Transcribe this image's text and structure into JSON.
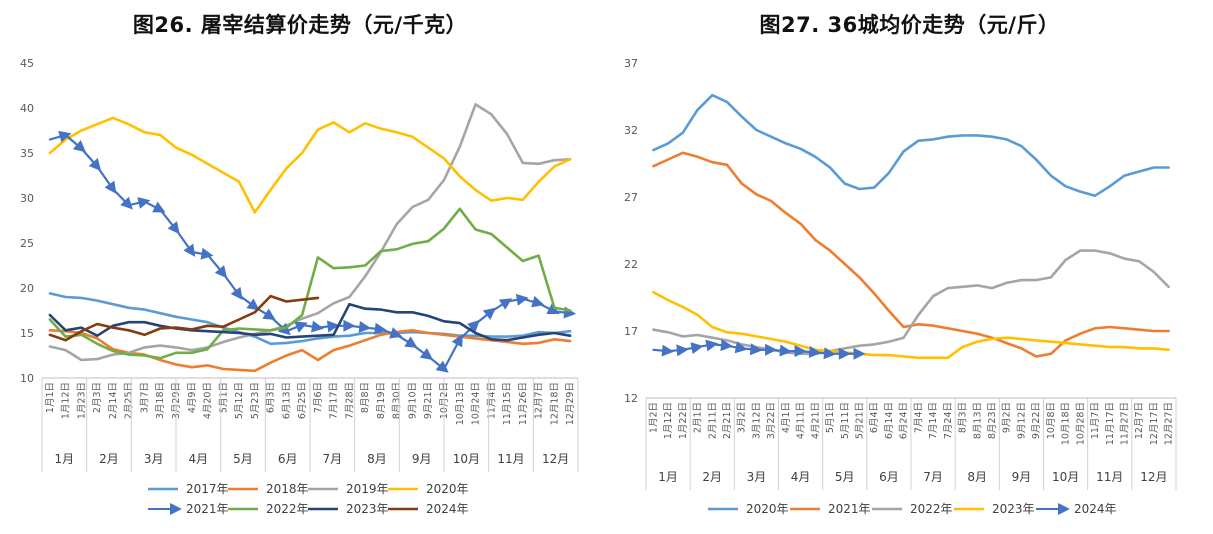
{
  "chart_data": [
    {
      "type": "line",
      "title": "图26. 屠宰结算价走势（元/千克）",
      "ylim": [
        10,
        45
      ],
      "yticks": [
        10,
        15,
        20,
        25,
        30,
        35,
        40,
        45
      ],
      "grid": false,
      "legend_position": "bottom",
      "x_categories": [
        "1月1日",
        "1月12日",
        "1月23日",
        "2月3日",
        "2月14日",
        "2月25日",
        "3月7日",
        "3月18日",
        "3月29日",
        "4月9日",
        "4月20日",
        "5月1日",
        "5月12日",
        "5月23日",
        "6月3日",
        "6月13日",
        "6月25日",
        "7月6日",
        "7月17日",
        "7月28日",
        "8月8日",
        "8月19日",
        "8月30日",
        "9月10日",
        "9月21日",
        "10月2日",
        "10月13日",
        "10月24日",
        "11月4日",
        "11月15日",
        "11月26日",
        "12月7日",
        "12月18日",
        "12月29日"
      ],
      "month_labels": [
        "1月",
        "2月",
        "3月",
        "4月",
        "5月",
        "6月",
        "7月",
        "8月",
        "9月",
        "10月",
        "11月",
        "12月"
      ],
      "series": [
        {
          "name": "2017年",
          "color": "#5B9BD5",
          "marker": "line",
          "x": [
            0,
            1,
            2,
            3,
            4,
            5,
            6,
            7,
            8,
            9,
            10,
            11,
            12,
            13,
            14,
            15,
            16,
            17,
            18,
            19,
            20,
            21,
            22,
            23,
            24,
            25,
            26,
            27,
            28,
            29,
            30,
            31,
            32,
            33
          ],
          "y": [
            19.4,
            19,
            18.9,
            18.6,
            18.2,
            17.8,
            17.6,
            17.2,
            16.8,
            16.5,
            16.2,
            15.6,
            15.1,
            14.6,
            13.8,
            13.9,
            14.1,
            14.4,
            14.6,
            14.7,
            15.0,
            15.0,
            15.0,
            15.1,
            15.0,
            14.9,
            14.7,
            14.7,
            14.6,
            14.6,
            14.7,
            15.1,
            15.0,
            15.2
          ]
        },
        {
          "name": "2018年",
          "color": "#ED7D31",
          "marker": "line",
          "x": [
            0,
            1,
            2,
            3,
            4,
            5,
            6,
            7,
            8,
            9,
            10,
            11,
            12,
            13,
            14,
            15,
            16,
            17,
            18,
            19,
            20,
            21,
            22,
            23,
            24,
            25,
            26,
            27,
            28,
            29,
            30,
            31,
            32,
            33
          ],
          "y": [
            15.3,
            15.2,
            15.0,
            14.4,
            13.2,
            12.8,
            12.6,
            12.0,
            11.5,
            11.2,
            11.4,
            11.0,
            10.9,
            10.8,
            11.7,
            12.5,
            13.1,
            12.0,
            13.1,
            13.6,
            14.2,
            14.8,
            15.1,
            15.3,
            15.0,
            14.8,
            14.6,
            14.4,
            14.2,
            14.0,
            13.8,
            13.9,
            14.3,
            14.1
          ]
        },
        {
          "name": "2019年",
          "color": "#A5A5A5",
          "marker": "line",
          "x": [
            0,
            1,
            2,
            3,
            4,
            5,
            6,
            7,
            8,
            9,
            10,
            11,
            12,
            13,
            14,
            15,
            16,
            17,
            18,
            19,
            20,
            21,
            22,
            23,
            24,
            25,
            26,
            27,
            28,
            29,
            30,
            31,
            32,
            33
          ],
          "y": [
            13.5,
            13.1,
            12.0,
            12.1,
            12.6,
            12.8,
            13.4,
            13.6,
            13.4,
            13.1,
            13.4,
            14.0,
            14.5,
            14.9,
            15.3,
            15.8,
            16.6,
            17.2,
            18.3,
            19.0,
            21.3,
            24.0,
            27.1,
            29.0,
            29.8,
            32.0,
            35.7,
            40.4,
            39.3,
            37.1,
            33.9,
            33.8,
            34.2,
            34.3
          ]
        },
        {
          "name": "2020年",
          "color": "#FFC000",
          "marker": "line",
          "x": [
            0,
            1,
            2,
            3,
            4,
            5,
            6,
            7,
            8,
            9,
            10,
            11,
            12,
            13,
            14,
            15,
            16,
            17,
            18,
            19,
            20,
            21,
            22,
            23,
            24,
            25,
            26,
            27,
            28,
            29,
            30,
            31,
            32,
            33
          ],
          "y": [
            35.0,
            36.5,
            37.5,
            38.2,
            38.9,
            38.2,
            37.3,
            37.0,
            35.6,
            34.8,
            33.8,
            32.8,
            31.8,
            28.4,
            30.9,
            33.3,
            35.0,
            37.6,
            38.4,
            37.3,
            38.3,
            37.7,
            37.3,
            36.8,
            35.6,
            34.4,
            32.4,
            30.9,
            29.7,
            30.0,
            29.8,
            31.8,
            33.5,
            34.3
          ]
        },
        {
          "name": "2021年",
          "color": "#4472C4",
          "marker": "arrow",
          "x": [
            0,
            1,
            2,
            3,
            4,
            5,
            6,
            7,
            8,
            9,
            10,
            11,
            12,
            13,
            14,
            15,
            16,
            17,
            18,
            19,
            20,
            21,
            22,
            23,
            24,
            25,
            26,
            27,
            28,
            29,
            30,
            31,
            32,
            33
          ],
          "y": [
            36.5,
            37.0,
            35.5,
            33.5,
            31.0,
            29.2,
            29.6,
            28.7,
            26.5,
            24.0,
            23.7,
            21.6,
            19.2,
            17.9,
            16.8,
            15.2,
            15.9,
            15.6,
            15.8,
            15.8,
            15.6,
            15.4,
            14.8,
            13.7,
            12.4,
            11.0,
            14.3,
            16.0,
            17.4,
            18.5,
            18.8,
            18.3,
            17.4,
            17.2
          ]
        },
        {
          "name": "2022年",
          "color": "#70AD47",
          "marker": "line",
          "x": [
            0,
            1,
            2,
            3,
            4,
            5,
            6,
            7,
            8,
            9,
            10,
            11,
            12,
            13,
            14,
            15,
            16,
            17,
            18,
            19,
            20,
            21,
            22,
            23,
            24,
            25,
            26,
            27,
            28,
            29,
            30,
            31,
            32,
            33
          ],
          "y": [
            16.5,
            14.6,
            14.8,
            13.8,
            13.0,
            12.6,
            12.5,
            12.2,
            12.8,
            12.8,
            13.2,
            15.3,
            15.5,
            15.4,
            15.3,
            15.6,
            17.0,
            23.4,
            22.2,
            22.3,
            22.5,
            24.1,
            24.3,
            24.9,
            25.2,
            26.6,
            28.8,
            26.5,
            26.0,
            24.5,
            23.0,
            23.6,
            17.8,
            17.5
          ]
        },
        {
          "name": "2023年",
          "color": "#264478",
          "marker": "line",
          "x": [
            0,
            1,
            2,
            3,
            4,
            5,
            6,
            7,
            8,
            9,
            10,
            11,
            12,
            13,
            14,
            15,
            16,
            17,
            18,
            19,
            20,
            21,
            22,
            23,
            24,
            25,
            26,
            27,
            28,
            29,
            30,
            31,
            32,
            33
          ],
          "y": [
            17.0,
            15.3,
            15.6,
            14.7,
            15.8,
            16.2,
            16.2,
            15.8,
            15.5,
            15.3,
            15.2,
            15.1,
            15.0,
            14.8,
            14.9,
            14.5,
            14.6,
            14.7,
            14.8,
            18.2,
            17.7,
            17.6,
            17.3,
            17.3,
            16.9,
            16.3,
            16.1,
            15.0,
            14.3,
            14.2,
            14.5,
            14.8,
            15.0,
            14.7
          ]
        },
        {
          "name": "2024年",
          "color": "#843C0C",
          "marker": "line",
          "x": [
            0,
            1,
            2,
            3,
            4,
            5,
            6,
            7,
            8,
            9,
            10,
            11,
            12,
            13,
            14,
            15,
            16,
            17,
            18,
            19
          ],
          "y": [
            14.8,
            14.2,
            15.2,
            16.0,
            15.6,
            15.3,
            14.8,
            15.5,
            15.6,
            15.4,
            15.8,
            15.7,
            16.5,
            17.3,
            19.1,
            18.5,
            18.7,
            18.9,
            null,
            null
          ]
        }
      ]
    },
    {
      "type": "line",
      "title": "图27. 36城均价走势（元/斤）",
      "ylim": [
        12,
        37
      ],
      "yticks": [
        12,
        17,
        22,
        27,
        32,
        37
      ],
      "grid": false,
      "legend_position": "bottom",
      "x_categories": [
        "1月2日",
        "1月12日",
        "1月22日",
        "2月1日",
        "2月11日",
        "2月21日",
        "3月2日",
        "3月12日",
        "3月22日",
        "4月1日",
        "4月11日",
        "4月21日",
        "5月1日",
        "5月11日",
        "5月21日",
        "6月4日",
        "6月14日",
        "6月24日",
        "7月4日",
        "7月14日",
        "7月24日",
        "8月3日",
        "8月13日",
        "8月23日",
        "9月2日",
        "9月12日",
        "9月22日",
        "10月8日",
        "10月18日",
        "10月28日",
        "11月7日",
        "11月17日",
        "11月27日",
        "12月7日",
        "12月17日",
        "12月27日"
      ],
      "month_labels": [
        "1月",
        "2月",
        "3月",
        "4月",
        "5月",
        "6月",
        "7月",
        "8月",
        "9月",
        "10月",
        "11月",
        "12月"
      ],
      "series": [
        {
          "name": "2020年",
          "color": "#5B9BD5",
          "marker": "line",
          "x": [
            0,
            1,
            2,
            3,
            4,
            5,
            6,
            7,
            8,
            9,
            10,
            11,
            12,
            13,
            14,
            15,
            16,
            17,
            18,
            19,
            20,
            21,
            22,
            23,
            24,
            25,
            26,
            27,
            28,
            29,
            30,
            31,
            32,
            33,
            34,
            35
          ],
          "y": [
            30.5,
            31.0,
            31.8,
            33.5,
            34.6,
            34.1,
            33.0,
            32.0,
            31.5,
            31.0,
            30.6,
            30.0,
            29.2,
            28.0,
            27.6,
            27.7,
            28.8,
            30.4,
            31.2,
            31.3,
            31.5,
            31.6,
            31.6,
            31.5,
            31.3,
            30.8,
            29.8,
            28.6,
            27.8,
            27.4,
            27.1,
            27.8,
            28.6,
            28.9,
            29.2,
            29.2
          ]
        },
        {
          "name": "2021年",
          "color": "#ED7D31",
          "marker": "line",
          "x": [
            0,
            1,
            2,
            3,
            4,
            5,
            6,
            7,
            8,
            9,
            10,
            11,
            12,
            13,
            14,
            15,
            16,
            17,
            18,
            19,
            20,
            21,
            22,
            23,
            24,
            25,
            26,
            27,
            28,
            29,
            30,
            31,
            32,
            33,
            34,
            35
          ],
          "y": [
            29.3,
            29.8,
            30.3,
            30.0,
            29.6,
            29.4,
            28.0,
            27.2,
            26.7,
            25.8,
            25.0,
            23.8,
            23.0,
            22.0,
            21.0,
            19.8,
            18.5,
            17.3,
            17.5,
            17.4,
            17.2,
            17.0,
            16.8,
            16.5,
            16.1,
            15.7,
            15.1,
            15.3,
            16.3,
            16.8,
            17.2,
            17.3,
            17.2,
            17.1,
            17.0,
            17.0
          ]
        },
        {
          "name": "2022年",
          "color": "#A5A5A5",
          "marker": "line",
          "x": [
            0,
            1,
            2,
            3,
            4,
            5,
            6,
            7,
            8,
            9,
            10,
            11,
            12,
            13,
            14,
            15,
            16,
            17,
            18,
            19,
            20,
            21,
            22,
            23,
            24,
            25,
            26,
            27,
            28,
            29,
            30,
            31,
            32,
            33,
            34,
            35
          ],
          "y": [
            17.1,
            16.9,
            16.6,
            16.7,
            16.5,
            16.3,
            16.0,
            15.8,
            15.6,
            15.4,
            15.3,
            15.3,
            15.5,
            15.7,
            15.9,
            16.0,
            16.2,
            16.5,
            18.2,
            19.6,
            20.2,
            20.3,
            20.4,
            20.2,
            20.6,
            20.8,
            20.8,
            21.0,
            22.3,
            23.0,
            23.0,
            22.8,
            22.4,
            22.2,
            21.4,
            20.3
          ]
        },
        {
          "name": "2023年",
          "color": "#FFC000",
          "marker": "line",
          "x": [
            0,
            1,
            2,
            3,
            4,
            5,
            6,
            7,
            8,
            9,
            10,
            11,
            12,
            13,
            14,
            15,
            16,
            17,
            18,
            19,
            20,
            21,
            22,
            23,
            24,
            25,
            26,
            27,
            28,
            29,
            30,
            31,
            32,
            33,
            34,
            35
          ],
          "y": [
            19.9,
            19.3,
            18.8,
            18.2,
            17.3,
            16.9,
            16.8,
            16.6,
            16.4,
            16.2,
            15.9,
            15.6,
            15.5,
            15.4,
            15.3,
            15.2,
            15.2,
            15.1,
            15.0,
            15.0,
            15.0,
            15.8,
            16.2,
            16.4,
            16.5,
            16.4,
            16.3,
            16.2,
            16.1,
            16.0,
            15.9,
            15.8,
            15.8,
            15.7,
            15.7,
            15.6
          ]
        },
        {
          "name": "2024年",
          "color": "#4472C4",
          "marker": "arrow",
          "x": [
            0,
            1,
            2,
            3,
            4,
            5,
            6,
            7,
            8,
            9,
            10,
            11,
            12,
            13,
            14
          ],
          "y": [
            15.6,
            15.5,
            15.6,
            15.8,
            16.0,
            15.9,
            15.7,
            15.6,
            15.6,
            15.5,
            15.5,
            15.4,
            15.3,
            15.3,
            15.3
          ]
        }
      ]
    }
  ],
  "panels": {
    "left": {
      "title": "图26. 屠宰结算价走势（元/千克）"
    },
    "right": {
      "title": "图27. 36城均价走势（元/斤）"
    }
  }
}
